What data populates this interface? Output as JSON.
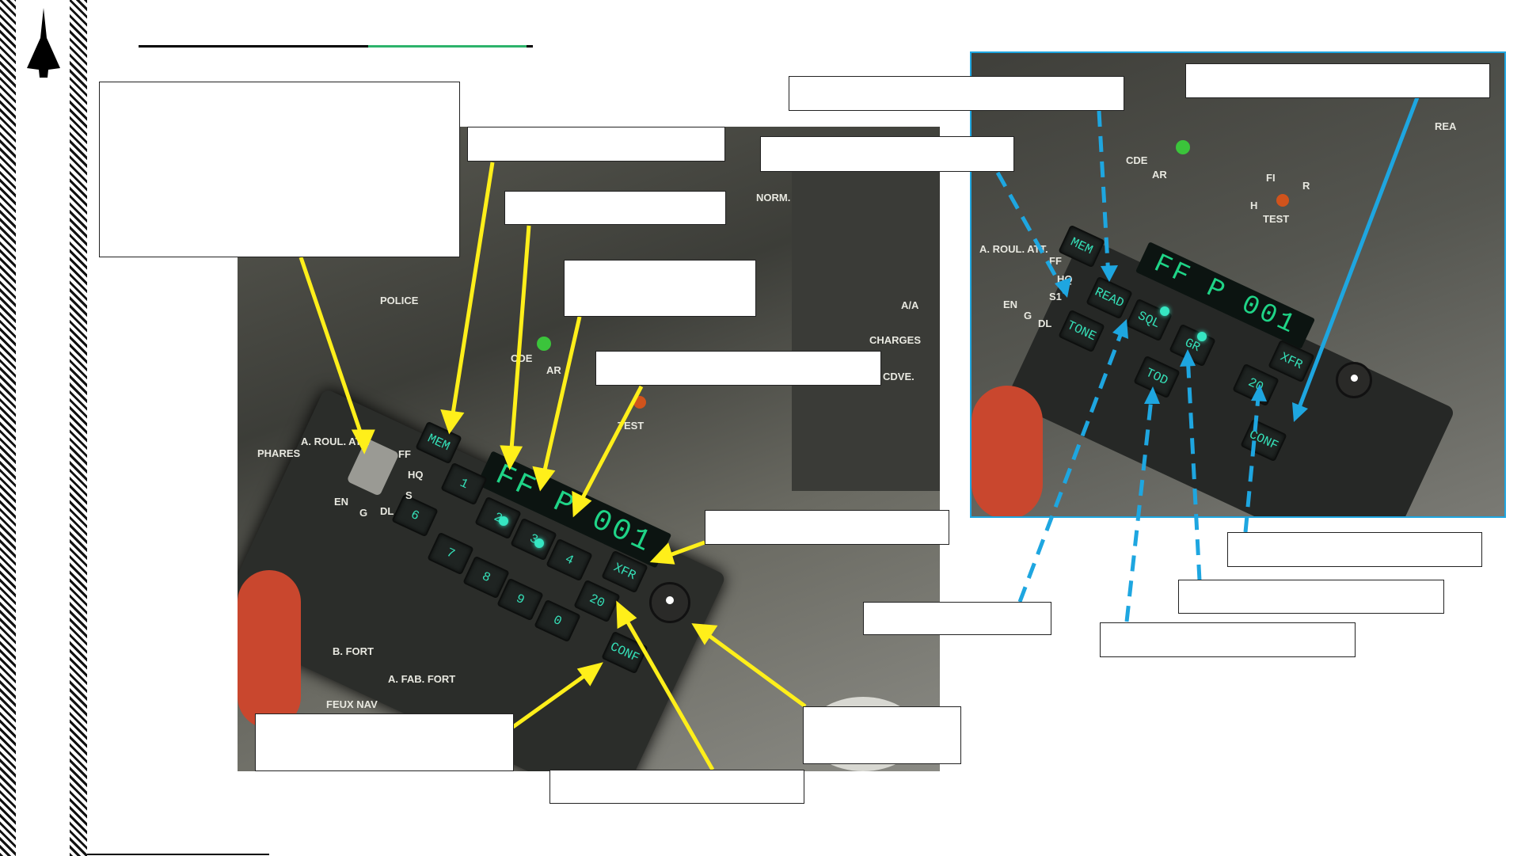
{
  "keypad": {
    "display": "FF P 001",
    "keys": [
      "MEM",
      "1",
      "2",
      "3",
      "4",
      "6",
      "7",
      "8",
      "9",
      "0",
      "XFR",
      "20",
      "CONF"
    ],
    "panel_labels": [
      "FF",
      "HQ",
      "S",
      "DL",
      "EN",
      "G",
      "NORM.",
      "A/A",
      "CHARGES",
      "CDVE.",
      "POLICE",
      "PHARES",
      "A. ROUL. ATT.",
      "TEST",
      "AR",
      "CDE",
      "FEUX NAV",
      "A. FAB. FORT",
      "B. FORT"
    ]
  },
  "inset": {
    "display": "FF P 001",
    "keys": [
      "MEM",
      "READ",
      "SQL",
      "GR",
      "XFR",
      "TONE",
      "TOD",
      "20",
      "CONF"
    ],
    "panel_labels": [
      "FF",
      "HQ",
      "S1",
      "EN",
      "G",
      "DL",
      "A. ROUL. ATT.",
      "CDE",
      "AR",
      "FI",
      "H",
      "TEST",
      "R",
      "REA"
    ]
  },
  "colors": {
    "callout_yellow": "#ffef1a",
    "callout_blue": "#1ea6e0",
    "title_underline_dark": "#000000",
    "title_underline_green": "#2db36b",
    "key_text": "#35e0b8",
    "display_text": "#1fd487"
  },
  "icons": {
    "logo": "delta-wing-jet-icon"
  }
}
